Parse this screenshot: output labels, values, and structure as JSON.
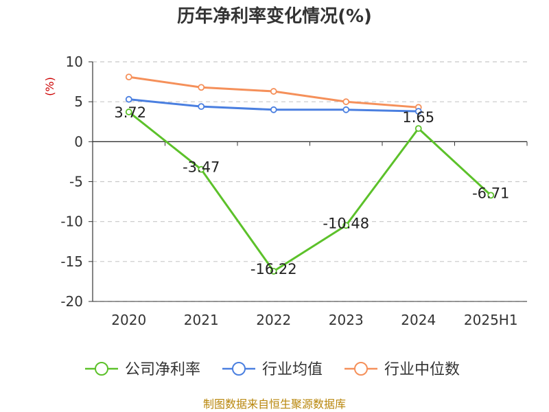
{
  "chart_data": {
    "type": "line",
    "title": "历年净利率变化情况(%)",
    "y_unit": "(%)",
    "categories": [
      "2020",
      "2021",
      "2022",
      "2023",
      "2024",
      "2025H1"
    ],
    "ylim": [
      -20,
      10
    ],
    "y_ticks": [
      "10",
      "5",
      "0",
      "-5",
      "-10",
      "-15",
      "-20"
    ],
    "grid": true,
    "legend_position": "bottom",
    "series": [
      {
        "name": "公司净利率",
        "color": "#5cc12a",
        "values": [
          3.72,
          -3.47,
          -16.22,
          -10.48,
          1.65,
          -6.71
        ],
        "labels": [
          "3.72",
          "-3.47",
          "-16.22",
          "-10.48",
          "1.65",
          "-6.71"
        ]
      },
      {
        "name": "行业均值",
        "color": "#4a7fe0",
        "values": [
          5.3,
          4.4,
          4.0,
          4.0,
          3.8,
          null
        ]
      },
      {
        "name": "行业中位数",
        "color": "#f5905a",
        "values": [
          8.1,
          6.8,
          6.3,
          5.0,
          4.3,
          null
        ]
      }
    ]
  },
  "source": "制图数据来自恒生聚源数据库"
}
